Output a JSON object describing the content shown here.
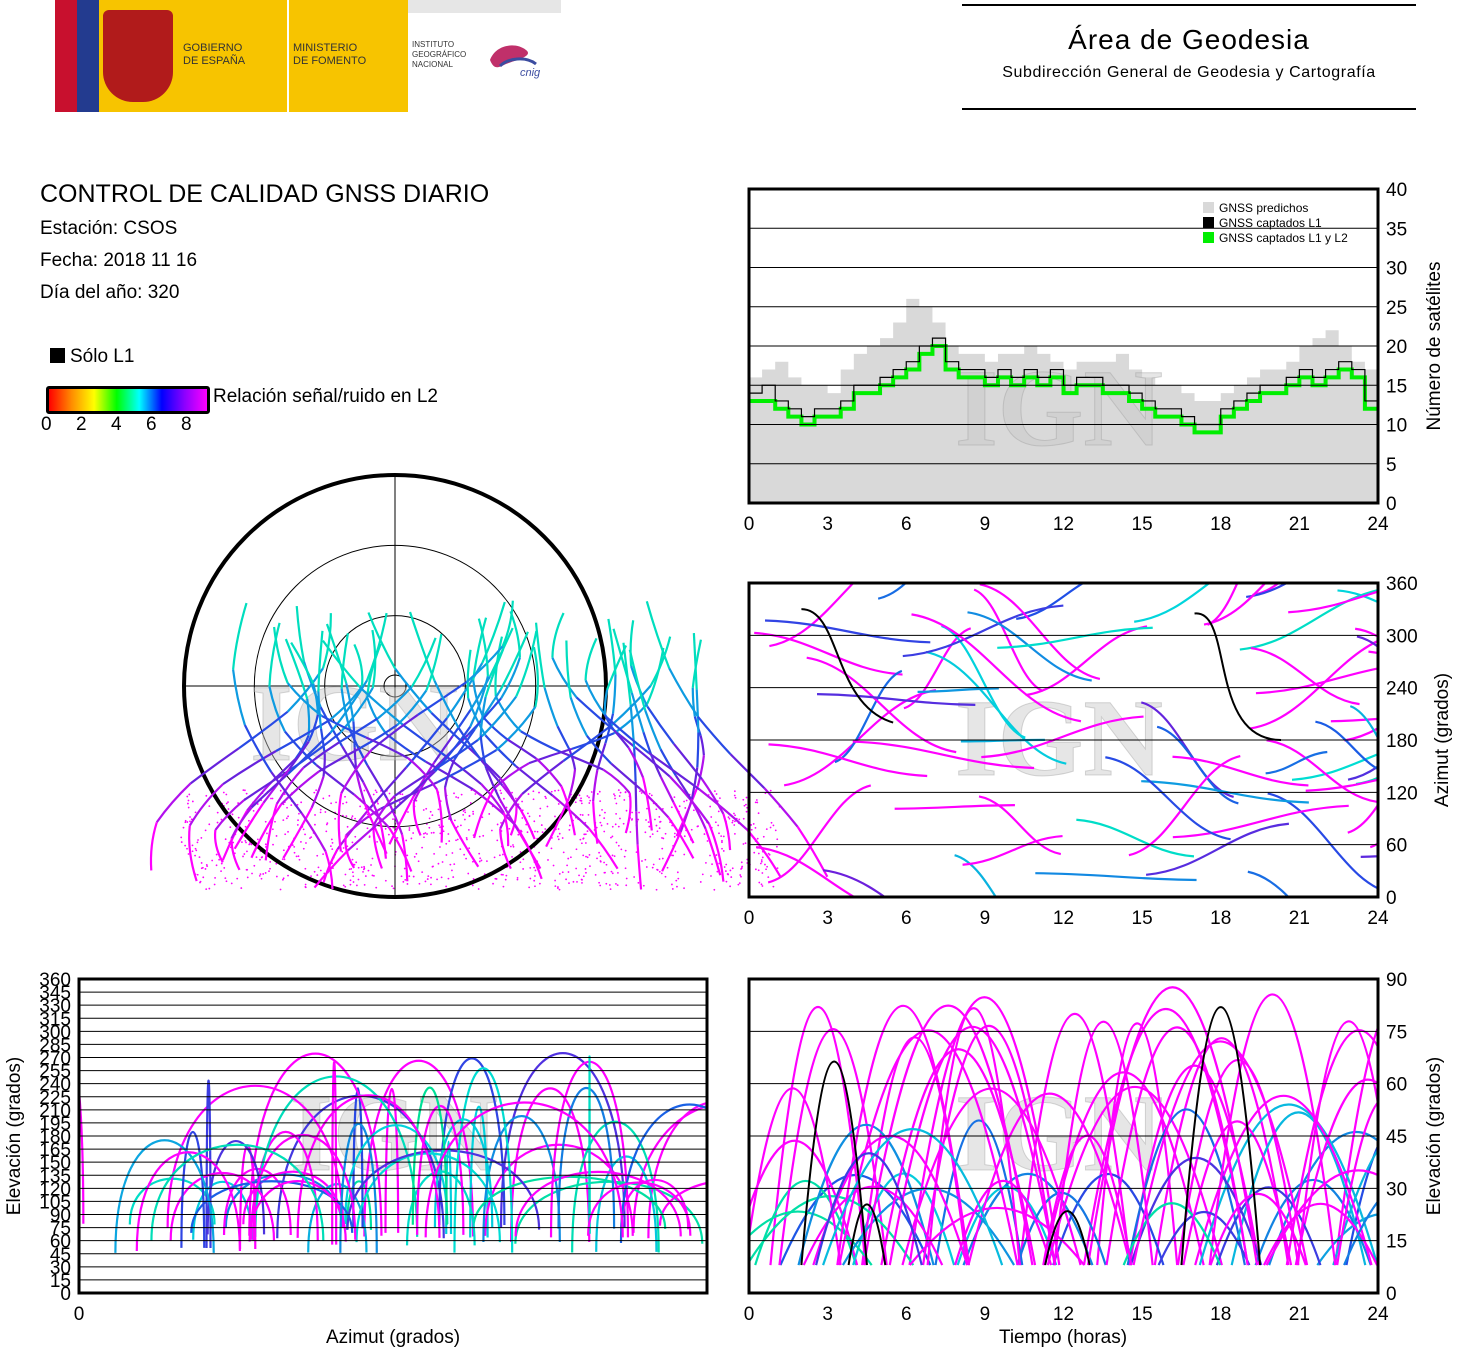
{
  "header": {
    "gov_line1": "GOBIERNO",
    "gov_line2": "DE ESPAÑA",
    "min_line1": "MINISTERIO",
    "min_line2": "DE FOMENTO",
    "ign_line1": "INSTITUTO",
    "ign_line2": "GEOGRÁFICO",
    "ign_line3": "NACIONAL",
    "cnig": "cnig",
    "area_title": "Área de Geodesia",
    "area_subtitle": "Subdirección General de Geodesia y Cartografía"
  },
  "report": {
    "title": "CONTROL DE CALIDAD GNSS DIARIO",
    "station": "Estación: CSOS",
    "date": "Fecha: 2018 11 16",
    "doy": "Día del año: 320",
    "solo_l1": "Sólo L1",
    "snr_label": "Relación señal/ruido en L2",
    "snr_ticks": [
      "0",
      "2",
      "4",
      "6",
      "8"
    ],
    "watermark": "IGN"
  },
  "colors": {
    "predicted": "#d9d9d9",
    "l1": "#000000",
    "l1l2": "#00ee00",
    "low_snr": "#ff0000",
    "high_snr": "#ff00ff"
  },
  "chart_data": [
    {
      "type": "area",
      "id": "sat-count",
      "ylabel": "Número de satélites",
      "xticks": [
        "0",
        "3",
        "6",
        "9",
        "12",
        "15",
        "18",
        "21",
        "24"
      ],
      "yticks": [
        "0",
        "5",
        "10",
        "15",
        "20",
        "25",
        "30",
        "35",
        "40"
      ],
      "xlim": [
        0,
        24
      ],
      "ylim": [
        0,
        40
      ],
      "grid": true,
      "legend_position": "top-right",
      "series": [
        {
          "name": "GNSS predichos",
          "x": [
            0,
            0.5,
            1,
            1.5,
            2,
            2.5,
            3,
            3.5,
            4,
            4.5,
            5,
            5.5,
            6,
            6.5,
            7,
            7.5,
            8,
            8.5,
            9,
            9.5,
            10,
            10.5,
            11,
            11.5,
            12,
            12.5,
            13,
            13.5,
            14,
            14.5,
            15,
            15.5,
            16,
            16.5,
            17,
            17.5,
            18,
            18.5,
            19,
            19.5,
            20,
            20.5,
            21,
            21.5,
            22,
            22.5,
            23,
            23.5,
            24
          ],
          "values": [
            16,
            17,
            18,
            16,
            15,
            15,
            14,
            17,
            19,
            20,
            21,
            23,
            26,
            25,
            23,
            20,
            19,
            19,
            18,
            19,
            19,
            20,
            19,
            18,
            17,
            18,
            18,
            18,
            19,
            17,
            16,
            15,
            15,
            14,
            13,
            13,
            14,
            15,
            16,
            17,
            17,
            18,
            20,
            21,
            22,
            20,
            18,
            17,
            17
          ]
        },
        {
          "name": "GNSS captados L1",
          "x": [
            0,
            0.5,
            1,
            1.5,
            2,
            2.5,
            3,
            3.5,
            4,
            4.5,
            5,
            5.5,
            6,
            6.5,
            7,
            7.5,
            8,
            8.5,
            9,
            9.5,
            10,
            10.5,
            11,
            11.5,
            12,
            12.5,
            13,
            13.5,
            14,
            14.5,
            15,
            15.5,
            16,
            16.5,
            17,
            17.5,
            18,
            18.5,
            19,
            19.5,
            20,
            20.5,
            21,
            21.5,
            22,
            22.5,
            23,
            23.5,
            24
          ],
          "values": [
            14,
            15,
            13,
            12,
            11,
            12,
            12,
            13,
            15,
            15,
            16,
            17,
            18,
            20,
            21,
            18,
            17,
            17,
            16,
            17,
            16,
            17,
            16,
            17,
            15,
            16,
            16,
            15,
            15,
            14,
            13,
            12,
            12,
            11,
            10,
            10,
            12,
            13,
            14,
            15,
            15,
            16,
            17,
            16,
            17,
            18,
            17,
            13,
            13
          ]
        },
        {
          "name": "GNSS captados L1 y L2",
          "x": [
            0,
            0.5,
            1,
            1.5,
            2,
            2.5,
            3,
            3.5,
            4,
            4.5,
            5,
            5.5,
            6,
            6.5,
            7,
            7.5,
            8,
            8.5,
            9,
            9.5,
            10,
            10.5,
            11,
            11.5,
            12,
            12.5,
            13,
            13.5,
            14,
            14.5,
            15,
            15.5,
            16,
            16.5,
            17,
            17.5,
            18,
            18.5,
            19,
            19.5,
            20,
            20.5,
            21,
            21.5,
            22,
            22.5,
            23,
            23.5,
            24
          ],
          "values": [
            13,
            13,
            12,
            11,
            10,
            11,
            11,
            12,
            14,
            14,
            15,
            16,
            17,
            19,
            20,
            17,
            16,
            16,
            15,
            16,
            15,
            16,
            15,
            16,
            14,
            15,
            15,
            14,
            14,
            13,
            12,
            11,
            11,
            10,
            9,
            9,
            11,
            12,
            13,
            14,
            14,
            15,
            16,
            15,
            16,
            17,
            16,
            12,
            12
          ]
        }
      ]
    },
    {
      "type": "scatter",
      "id": "skyplot",
      "title": "",
      "elevation_rings": [
        0,
        30,
        60,
        90
      ],
      "note": ""
    },
    {
      "type": "line",
      "id": "azimuth-time",
      "ylabel": "Azimut (grados)",
      "xticks": [
        "0",
        "3",
        "6",
        "9",
        "12",
        "15",
        "18",
        "21",
        "24"
      ],
      "yticks": [
        "0",
        "60",
        "120",
        "180",
        "240",
        "300",
        "360"
      ],
      "xlim": [
        0,
        24
      ],
      "ylim": [
        0,
        360
      ],
      "grid": true
    },
    {
      "type": "line",
      "id": "elevation-azimuth",
      "xlabel": "Azimut (grados)",
      "ylabel": "Elevación (grados)",
      "xticks": [
        "0"
      ],
      "yticks": [
        "0",
        "15",
        "30",
        "45",
        "60",
        "75",
        "90",
        "105",
        "120",
        "135",
        "150",
        "165",
        "180",
        "195",
        "210",
        "225",
        "240",
        "255",
        "270",
        "285",
        "300",
        "315",
        "330",
        "345",
        "360"
      ],
      "ylim": [
        0,
        360
      ],
      "grid": true
    },
    {
      "type": "line",
      "id": "elevation-time",
      "xlabel": "Tiempo (horas)",
      "ylabel": "Elevación (grados)",
      "xticks": [
        "0",
        "3",
        "6",
        "9",
        "12",
        "15",
        "18",
        "21",
        "24"
      ],
      "yticks": [
        "0",
        "15",
        "30",
        "45",
        "60",
        "75",
        "90"
      ],
      "xlim": [
        0,
        24
      ],
      "ylim": [
        0,
        90
      ],
      "grid": true
    }
  ]
}
